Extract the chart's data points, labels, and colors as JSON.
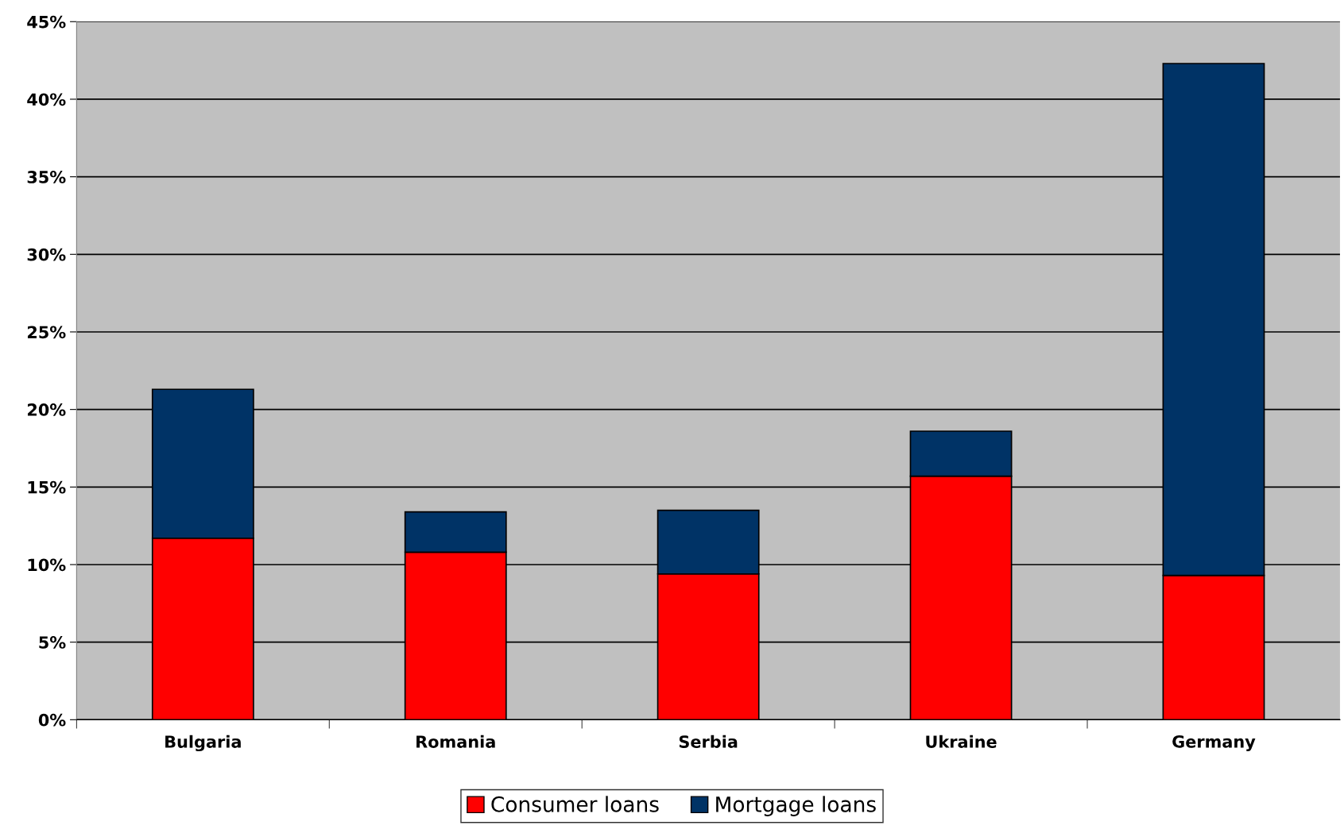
{
  "chart_data": {
    "type": "bar",
    "stacked": true,
    "categories": [
      "Bulgaria",
      "Romania",
      "Serbia",
      "Ukraine",
      "Germany"
    ],
    "series": [
      {
        "name": "Consumer loans",
        "color": "#ff0000",
        "values": [
          11.7,
          10.8,
          9.4,
          15.7,
          9.3
        ]
      },
      {
        "name": "Mortgage loans",
        "color": "#003366",
        "values": [
          9.6,
          2.6,
          4.1,
          2.9,
          33.0
        ]
      }
    ],
    "ylim": [
      0,
      45
    ],
    "yticks": [
      {
        "value": 0,
        "label": "0%"
      },
      {
        "value": 5,
        "label": "5%"
      },
      {
        "value": 10,
        "label": "10%"
      },
      {
        "value": 15,
        "label": "15%"
      },
      {
        "value": 20,
        "label": "20%"
      },
      {
        "value": 25,
        "label": "25%"
      },
      {
        "value": 30,
        "label": "30%"
      },
      {
        "value": 35,
        "label": "35%"
      },
      {
        "value": 40,
        "label": "40%"
      },
      {
        "value": 45,
        "label": "45%"
      }
    ],
    "grid": "y",
    "legend": "bottom"
  }
}
